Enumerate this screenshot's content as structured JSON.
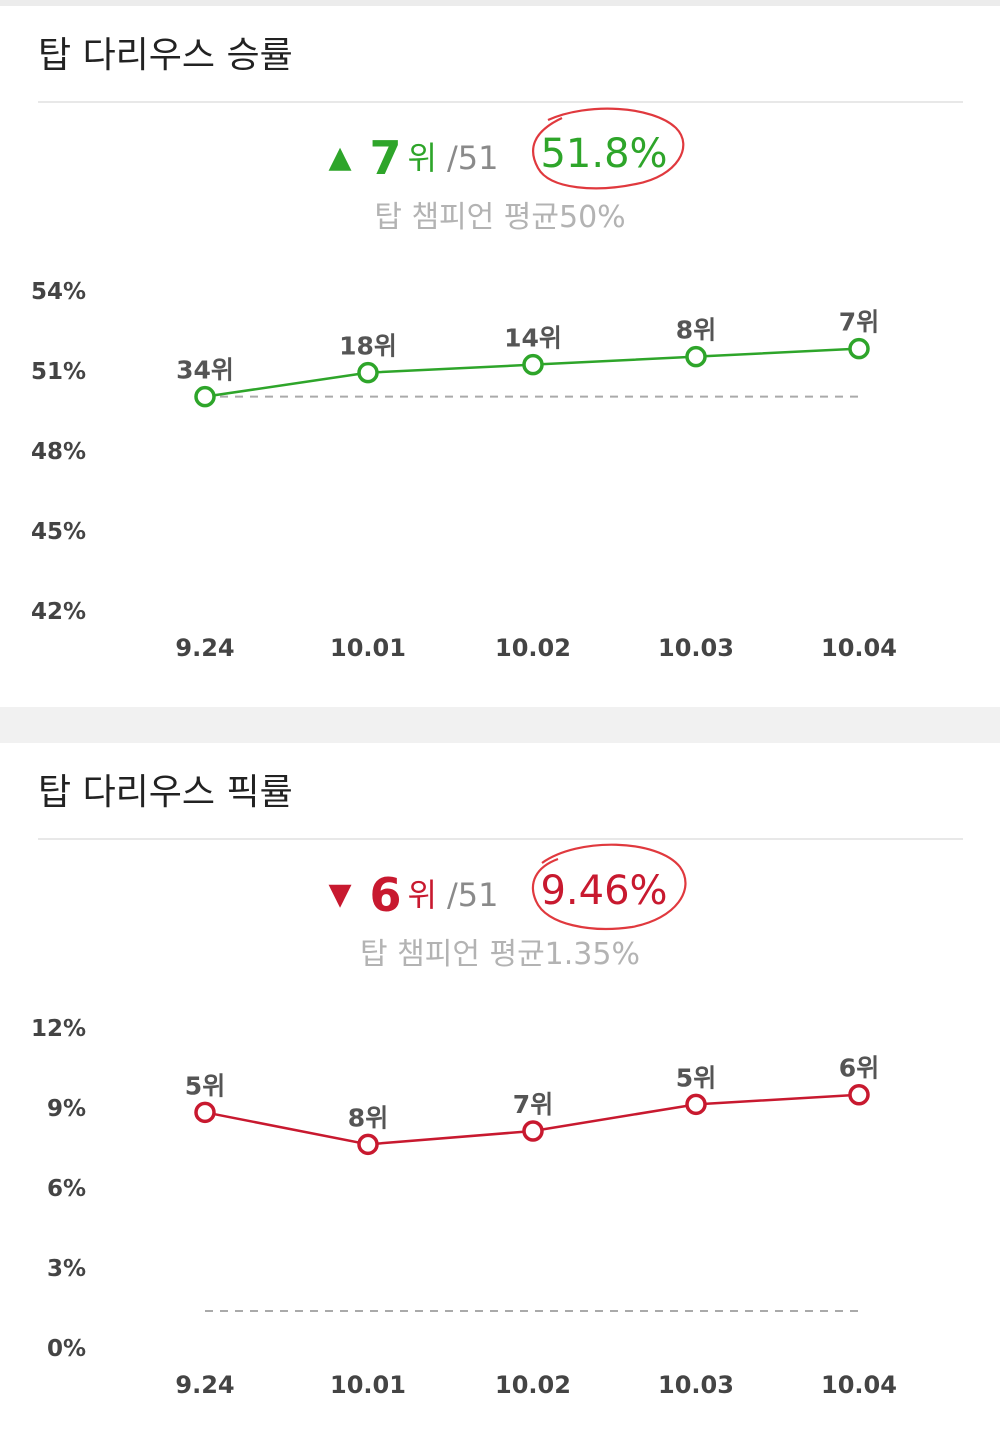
{
  "win_rate": {
    "title": "탑 다리우스 승률",
    "trend_icon": "triangle-up-icon",
    "rank": "7",
    "rank_unit": "위",
    "rank_total": "/51",
    "rate": "51.8%",
    "average_text": "탑 챔피언 평균50%",
    "colors": {
      "line": "#2ea52a",
      "annotation": "#e0393e"
    }
  },
  "pick_rate": {
    "title": "탑 다리우스 픽률",
    "trend_icon": "triangle-down-icon",
    "rank": "6",
    "rank_unit": "위",
    "rank_total": "/51",
    "rate": "9.46%",
    "average_text": "탑 챔피언 평균1.35%",
    "colors": {
      "line": "#c8192f",
      "annotation": "#e0393e"
    }
  },
  "chart_data": [
    {
      "type": "line",
      "title": "탑 다리우스 승률",
      "x": [
        "9.24",
        "10.01",
        "10.02",
        "10.03",
        "10.04"
      ],
      "series": [
        {
          "values": [
            50.0,
            50.9,
            51.2,
            51.5,
            51.8
          ],
          "point_labels": [
            "34위",
            "18위",
            "14위",
            "8위",
            "7위"
          ],
          "color": "#2ea52a"
        }
      ],
      "yticks": [
        "54%",
        "51%",
        "48%",
        "45%",
        "42%"
      ],
      "ylim": [
        42,
        54
      ],
      "reference_line": {
        "value": 50.0,
        "style": "dashed"
      },
      "grid": false
    },
    {
      "type": "line",
      "title": "탑 다리우스 픽률",
      "x": [
        "9.24",
        "10.01",
        "10.02",
        "10.03",
        "10.04"
      ],
      "series": [
        {
          "values": [
            8.8,
            7.6,
            8.1,
            9.1,
            9.46
          ],
          "point_labels": [
            "5위",
            "8위",
            "7위",
            "5위",
            "6위"
          ],
          "color": "#c8192f"
        }
      ],
      "yticks": [
        "12%",
        "9%",
        "6%",
        "3%",
        "0%"
      ],
      "ylim": [
        0,
        12
      ],
      "reference_line": {
        "value": 1.35,
        "style": "dashed"
      },
      "grid": false
    }
  ]
}
